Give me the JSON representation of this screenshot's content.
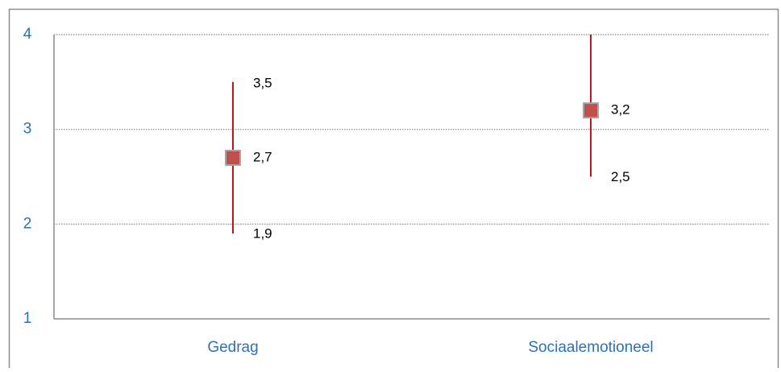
{
  "chart_data": {
    "type": "errorbar",
    "categories": [
      "Gedrag",
      "Sociaalemotioneel"
    ],
    "series": [
      {
        "color": "#c0504d",
        "line_color": "#b01c1c",
        "values": [
          2.7,
          3.2
        ],
        "value_labels": [
          "2,7",
          "3,2"
        ],
        "high": [
          3.5,
          4.0
        ],
        "high_labels": [
          "3,5",
          null
        ],
        "low": [
          1.9,
          2.5
        ],
        "low_labels": [
          "1,9",
          "2,5"
        ]
      }
    ],
    "ylim": [
      1,
      4
    ],
    "yticks": [
      1,
      2,
      3,
      4
    ],
    "grid": true
  }
}
